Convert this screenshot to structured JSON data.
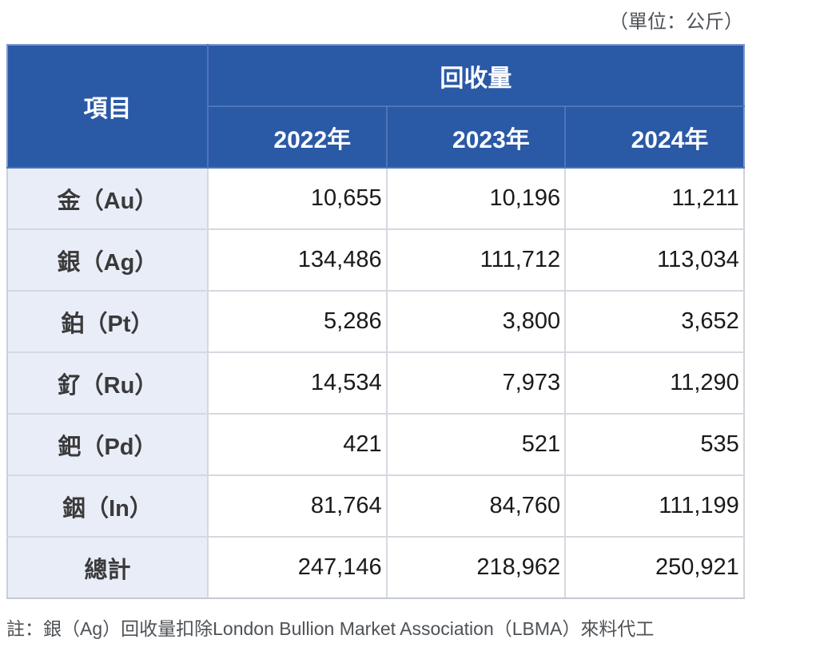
{
  "page": {
    "unit_label": "（單位：公斤）",
    "footnote": "註：銀（Ag）回收量扣除London Bullion Market Association（LBMA）來料代工"
  },
  "table": {
    "item_header": "項目",
    "group_header": "回收量",
    "year_headers": [
      "2022年",
      "2023年",
      "2024年"
    ],
    "rows": [
      {
        "label": "金（Au）",
        "values": [
          "10,655",
          "10,196",
          "11,211"
        ]
      },
      {
        "label": "銀（Ag）",
        "values": [
          "134,486",
          "111,712",
          "113,034"
        ]
      },
      {
        "label": "鉑（Pt）",
        "values": [
          "5,286",
          "3,800",
          "3,652"
        ]
      },
      {
        "label": "釕（Ru）",
        "values": [
          "14,534",
          "7,973",
          "11,290"
        ]
      },
      {
        "label": "鈀（Pd）",
        "values": [
          "421",
          "521",
          "535"
        ]
      },
      {
        "label": "銦（In）",
        "values": [
          "81,764",
          "84,760",
          "111,199"
        ]
      },
      {
        "label": "總計",
        "values": [
          "247,146",
          "218,962",
          "250,921"
        ]
      }
    ],
    "colors": {
      "header_bg": "#2a59a6",
      "header_text": "#ffffff",
      "header_inner_border": "#4f74b8",
      "header_outer_border": "#8099cd",
      "label_column_bg": "#e8edf8",
      "body_border": "#d5d8de",
      "number_text": "#1a1a1a",
      "note_text": "#4e5256"
    }
  },
  "chart_data": {
    "type": "table",
    "title": "回收量",
    "unit": "公斤",
    "categories": [
      "2022年",
      "2023年",
      "2024年"
    ],
    "series": [
      {
        "name": "金（Au）",
        "values": [
          10655,
          10196,
          11211
        ]
      },
      {
        "name": "銀（Ag）",
        "values": [
          134486,
          111712,
          113034
        ]
      },
      {
        "name": "鉑（Pt）",
        "values": [
          5286,
          3800,
          3652
        ]
      },
      {
        "name": "釕（Ru）",
        "values": [
          14534,
          7973,
          11290
        ]
      },
      {
        "name": "鈀（Pd）",
        "values": [
          421,
          521,
          535
        ]
      },
      {
        "name": "銦（In）",
        "values": [
          81764,
          84760,
          111199
        ]
      },
      {
        "name": "總計",
        "values": [
          247146,
          218962,
          250921
        ]
      }
    ],
    "note": "註：銀（Ag）回收量扣除London Bullion Market Association（LBMA）來料代工"
  }
}
